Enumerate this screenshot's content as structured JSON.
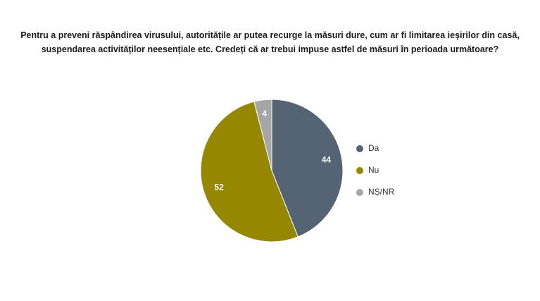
{
  "chart_data": {
    "type": "pie",
    "title": "Pentru a preveni răspândirea virusului, autoritățile ar putea recurge la măsuri dure, cum ar fi limitarea ieșirilor din casă, suspendarea activităților neesențiale etc. Credeți că ar trebui impuse astfel de măsuri în perioada următoare?",
    "categories": [
      "Da",
      "Nu",
      "NȘ/NR"
    ],
    "values": [
      44,
      52,
      4
    ],
    "colors": [
      "#546474",
      "#968700",
      "#a6a6a6"
    ],
    "legend": "right"
  }
}
